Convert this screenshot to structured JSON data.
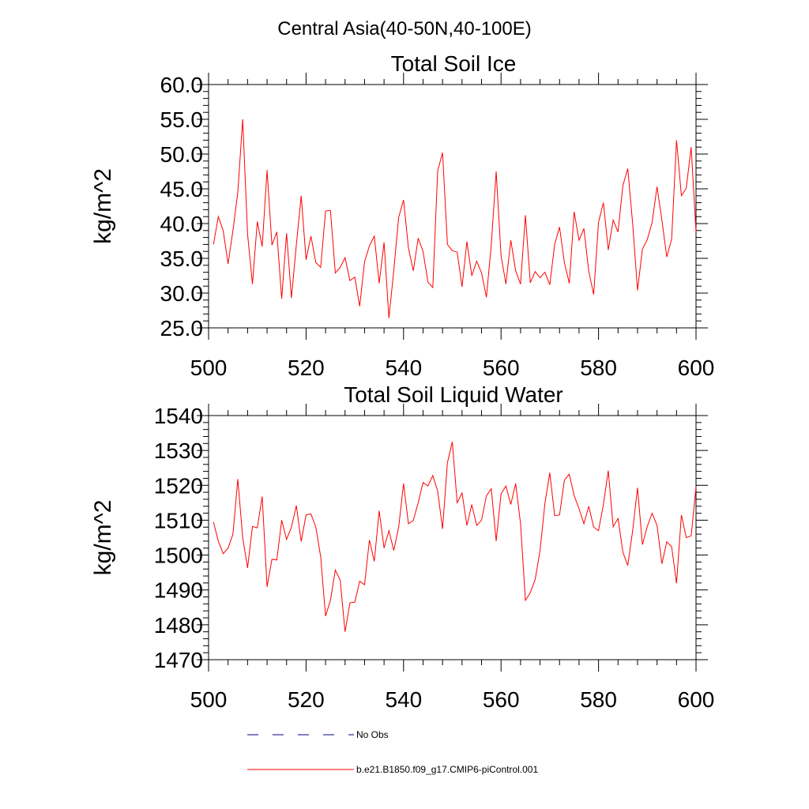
{
  "figure": {
    "suptitle": "Central Asia(40-50N,40-100E)",
    "legend": {
      "entries": [
        {
          "label": "No Obs",
          "style": "dashed",
          "color": "#00007f"
        },
        {
          "label": "b.e21.B1850.f09_g17.CMIP6-piControl.001",
          "style": "solid",
          "color": "#ff0000"
        }
      ]
    }
  },
  "chart_data": [
    {
      "type": "line",
      "title": "Total Soil Ice",
      "xlabel": "",
      "ylabel": "kg/m^2",
      "xlim": [
        500,
        600
      ],
      "ylim": [
        25,
        60
      ],
      "xticks": [
        "500",
        "520",
        "540",
        "560",
        "580",
        "600"
      ],
      "yticks": [
        "25.0",
        "30.0",
        "35.0",
        "40.0",
        "45.0",
        "50.0",
        "55.0",
        "60.0"
      ],
      "grid": false,
      "series": [
        {
          "name": "b.e21.B1850.f09_g17.CMIP6-piControl.001",
          "color": "#ff0000",
          "x_start": 501,
          "x_step": 1,
          "values": [
            37.0,
            41.0,
            39.0,
            34.2,
            39.0,
            44.5,
            55.0,
            38.5,
            31.3,
            40.3,
            36.7,
            47.7,
            36.9,
            38.8,
            29.2,
            38.6,
            29.3,
            36.9,
            44.0,
            34.8,
            38.2,
            34.4,
            33.7,
            41.8,
            41.9,
            32.9,
            33.7,
            35.1,
            31.8,
            32.3,
            28.1,
            34.5,
            36.8,
            38.2,
            31.4,
            37.3,
            26.4,
            33.3,
            40.9,
            43.4,
            36.5,
            33.2,
            37.9,
            36.0,
            31.6,
            30.8,
            47.6,
            50.2,
            37.0,
            36.1,
            35.9,
            30.9,
            37.4,
            32.5,
            34.6,
            32.9,
            29.4,
            37.0,
            47.5,
            35.4,
            31.3,
            37.6,
            33.2,
            31.3,
            41.2,
            31.5,
            33.1,
            32.2,
            33.0,
            31.2,
            37.0,
            39.5,
            34.4,
            31.4,
            41.7,
            37.6,
            39.3,
            33.1,
            29.8,
            40.2,
            43.0,
            36.2,
            40.5,
            38.8,
            45.5,
            47.9,
            40.0,
            30.4,
            36.3,
            37.7,
            40.2,
            45.3,
            40.5,
            35.2,
            37.8,
            52.0,
            44.0,
            45.1,
            51.0,
            38.8
          ]
        }
      ]
    },
    {
      "type": "line",
      "title": "Total Soil Liquid Water",
      "xlabel": "",
      "ylabel": "kg/m^2",
      "xlim": [
        500,
        600
      ],
      "ylim": [
        1470,
        1540
      ],
      "xticks": [
        "500",
        "520",
        "540",
        "560",
        "580",
        "600"
      ],
      "yticks": [
        "1470",
        "1480",
        "1490",
        "1500",
        "1510",
        "1520",
        "1530",
        "1540"
      ],
      "grid": false,
      "series": [
        {
          "name": "b.e21.B1850.f09_g17.CMIP6-piControl.001",
          "color": "#ff0000",
          "x_start": 501,
          "x_step": 1,
          "values": [
            1509.5,
            1504.0,
            1500.4,
            1502.0,
            1506.0,
            1521.8,
            1505.0,
            1496.3,
            1508.2,
            1507.8,
            1516.8,
            1490.9,
            1498.8,
            1498.6,
            1510.0,
            1504.5,
            1508.0,
            1514.2,
            1503.9,
            1511.5,
            1511.8,
            1508.0,
            1499.5,
            1482.5,
            1487.0,
            1495.7,
            1492.8,
            1478.0,
            1486.3,
            1486.5,
            1492.5,
            1491.5,
            1504.3,
            1498.2,
            1512.7,
            1502.0,
            1507.0,
            1501.3,
            1508.0,
            1520.5,
            1509.0,
            1509.9,
            1515.0,
            1520.8,
            1519.8,
            1522.8,
            1518.4,
            1507.5,
            1526.5,
            1532.5,
            1515.0,
            1517.8,
            1508.5,
            1514.5,
            1508.5,
            1510.0,
            1517.0,
            1519.0,
            1504.0,
            1517.5,
            1519.8,
            1514.5,
            1520.5,
            1509.0,
            1487.0,
            1489.2,
            1493.0,
            1501.3,
            1514.8,
            1523.6,
            1511.3,
            1511.5,
            1521.5,
            1523.2,
            1517.0,
            1513.3,
            1509.0,
            1514.0,
            1508.0,
            1507.0,
            1514.5,
            1524.2,
            1508.1,
            1510.5,
            1500.8,
            1497.0,
            1507.0,
            1519.3,
            1503.0,
            1508.2,
            1512.0,
            1508.5,
            1497.5,
            1503.8,
            1502.4,
            1491.9,
            1511.5,
            1505.0,
            1505.5,
            1519.5
          ]
        }
      ]
    }
  ]
}
